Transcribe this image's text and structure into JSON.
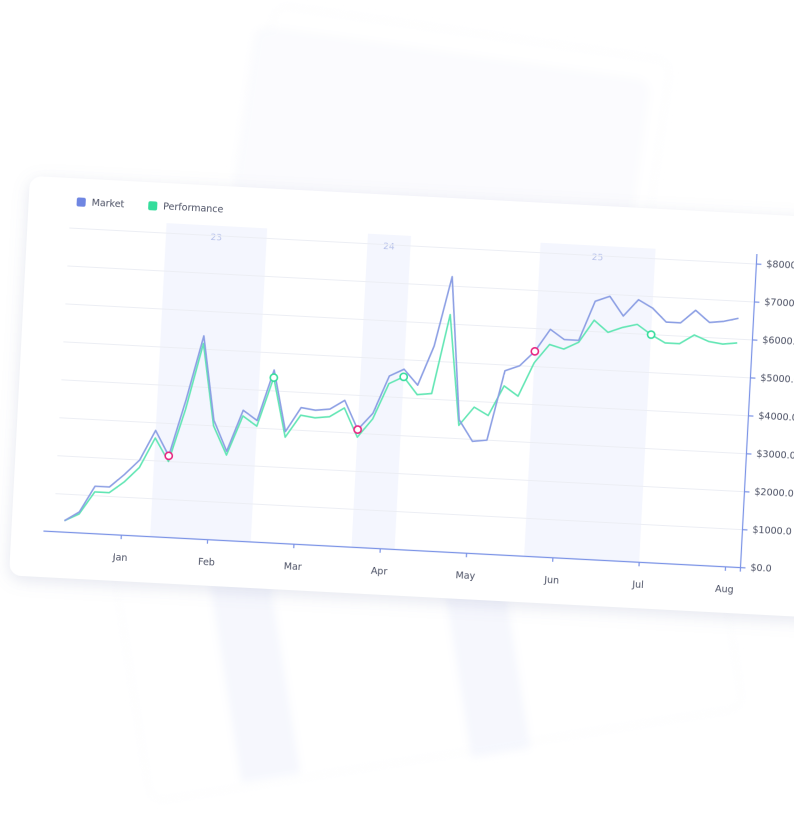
{
  "chart_data": {
    "type": "line",
    "categories": [
      null,
      null,
      null,
      null,
      "Jan",
      null,
      null,
      null,
      null,
      null,
      "Feb",
      null,
      null,
      null,
      null,
      null,
      "Mar",
      null,
      null,
      null,
      null,
      null,
      "Apr",
      null,
      null,
      null,
      null,
      null,
      "May",
      null,
      null,
      null,
      null,
      null,
      "Jun",
      null,
      null,
      null,
      null,
      null,
      "Jul",
      null,
      null,
      null,
      null,
      null,
      "Aug"
    ],
    "series": [
      {
        "name": "Market",
        "color": "#8c9fe4",
        "legend_color": "#6f86e2",
        "values": [
          300,
          550,
          1250,
          1250,
          1600,
          2000,
          2800,
          2150,
          3650,
          5350,
          3150,
          2350,
          3450,
          3200,
          4550,
          2950,
          3600,
          3550,
          3600,
          3850,
          3100,
          3550,
          4550,
          4750,
          4350,
          5400,
          7250,
          3500,
          2950,
          3000,
          4850,
          5000,
          5400,
          6000,
          5750,
          5750,
          6800,
          6950,
          6450,
          6900,
          6700,
          6350,
          6350,
          6700,
          6400,
          6450,
          6550
        ]
      },
      {
        "name": "Performance",
        "color": "#62e6b4",
        "legend_color": "#35dd9c",
        "values": [
          300,
          500,
          1100,
          1100,
          1400,
          1800,
          2600,
          2000,
          3400,
          5150,
          3000,
          2250,
          3300,
          3050,
          4350,
          2800,
          3400,
          3350,
          3400,
          3650,
          2900,
          3400,
          4350,
          4550,
          4100,
          4150,
          6250,
          3350,
          3850,
          3650,
          4450,
          4200,
          5100,
          5600,
          5500,
          5700,
          6300,
          6000,
          6150,
          6250,
          6000,
          5800,
          5800,
          6050,
          5900,
          5850,
          5900
        ]
      }
    ],
    "markers": [
      {
        "series": 0,
        "index": 7,
        "color": "#e8237f"
      },
      {
        "series": 1,
        "index": 14,
        "color": "#35dd9c"
      },
      {
        "series": 0,
        "index": 20,
        "color": "#e8237f"
      },
      {
        "series": 1,
        "index": 23,
        "color": "#35dd9c"
      },
      {
        "series": 0,
        "index": 32,
        "color": "#e8237f"
      },
      {
        "series": 1,
        "index": 40,
        "color": "#35dd9c"
      }
    ],
    "bands": [
      {
        "label": "23",
        "start": 6,
        "end": 13
      },
      {
        "label": "24",
        "start": 20,
        "end": 23
      },
      {
        "label": "25",
        "start": 32,
        "end": 40
      }
    ],
    "ylim": [
      0,
      8000
    ],
    "yticks": [
      {
        "value": 0,
        "label": "$0.0"
      },
      {
        "value": 1000,
        "label": "$1000.0"
      },
      {
        "value": 2000,
        "label": "$2000.0"
      },
      {
        "value": 3000,
        "label": "$3000.0"
      },
      {
        "value": 4000,
        "label": "$4000.0"
      },
      {
        "value": 5000,
        "label": "$5000.0"
      },
      {
        "value": 6000,
        "label": "$6000.0"
      },
      {
        "value": 7000,
        "label": "$7000.0"
      },
      {
        "value": 8000,
        "label": "$8000.0"
      }
    ],
    "grid": true,
    "legend": "top-left"
  }
}
